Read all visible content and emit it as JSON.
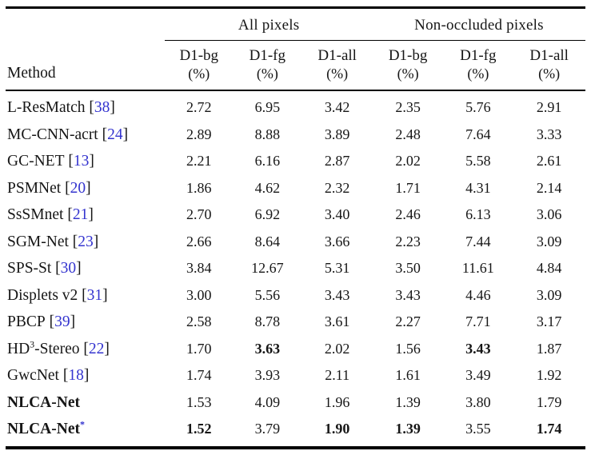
{
  "colors": {
    "text": "#161616",
    "citation_blue": "#3434cf",
    "rule": "#000000",
    "background": "#ffffff"
  },
  "table": {
    "method_header": "Method",
    "unit": "(%)",
    "groups": [
      {
        "label": "All pixels"
      },
      {
        "label": "Non-occluded pixels"
      }
    ],
    "columns": [
      "D1-bg",
      "D1-fg",
      "D1-all",
      "D1-bg",
      "D1-fg",
      "D1-all"
    ],
    "rows": [
      {
        "name": "L-ResMatch",
        "sup": "",
        "sup_blue": false,
        "name_rest": "",
        "cite": "38",
        "bold_method": false,
        "values": [
          "2.72",
          "6.95",
          "3.42",
          "2.35",
          "5.76",
          "2.91"
        ],
        "bold": [
          0,
          0,
          0,
          0,
          0,
          0
        ]
      },
      {
        "name": "MC-CNN-acrt",
        "sup": "",
        "sup_blue": false,
        "name_rest": "",
        "cite": "24",
        "bold_method": false,
        "values": [
          "2.89",
          "8.88",
          "3.89",
          "2.48",
          "7.64",
          "3.33"
        ],
        "bold": [
          0,
          0,
          0,
          0,
          0,
          0
        ]
      },
      {
        "name": "GC-NET",
        "sup": "",
        "sup_blue": false,
        "name_rest": "",
        "cite": "13",
        "bold_method": false,
        "values": [
          "2.21",
          "6.16",
          "2.87",
          "2.02",
          "5.58",
          "2.61"
        ],
        "bold": [
          0,
          0,
          0,
          0,
          0,
          0
        ]
      },
      {
        "name": "PSMNet",
        "sup": "",
        "sup_blue": false,
        "name_rest": "",
        "cite": "20",
        "bold_method": false,
        "values": [
          "1.86",
          "4.62",
          "2.32",
          "1.71",
          "4.31",
          "2.14"
        ],
        "bold": [
          0,
          0,
          0,
          0,
          0,
          0
        ]
      },
      {
        "name": "SsSMnet",
        "sup": "",
        "sup_blue": false,
        "name_rest": "",
        "cite": "21",
        "bold_method": false,
        "values": [
          "2.70",
          "6.92",
          "3.40",
          "2.46",
          "6.13",
          "3.06"
        ],
        "bold": [
          0,
          0,
          0,
          0,
          0,
          0
        ]
      },
      {
        "name": "SGM-Net",
        "sup": "",
        "sup_blue": false,
        "name_rest": "",
        "cite": "23",
        "bold_method": false,
        "values": [
          "2.66",
          "8.64",
          "3.66",
          "2.23",
          "7.44",
          "3.09"
        ],
        "bold": [
          0,
          0,
          0,
          0,
          0,
          0
        ]
      },
      {
        "name": "SPS-St",
        "sup": "",
        "sup_blue": false,
        "name_rest": "",
        "cite": "30",
        "bold_method": false,
        "values": [
          "3.84",
          "12.67",
          "5.31",
          "3.50",
          "11.61",
          "4.84"
        ],
        "bold": [
          0,
          0,
          0,
          0,
          0,
          0
        ]
      },
      {
        "name": "Displets v2",
        "sup": "",
        "sup_blue": false,
        "name_rest": "",
        "cite": "31",
        "bold_method": false,
        "values": [
          "3.00",
          "5.56",
          "3.43",
          "3.43",
          "4.46",
          "3.09"
        ],
        "bold": [
          0,
          0,
          0,
          0,
          0,
          0
        ]
      },
      {
        "name": "PBCP",
        "sup": "",
        "sup_blue": false,
        "name_rest": "",
        "cite": "39",
        "bold_method": false,
        "values": [
          "2.58",
          "8.78",
          "3.61",
          "2.27",
          "7.71",
          "3.17"
        ],
        "bold": [
          0,
          0,
          0,
          0,
          0,
          0
        ]
      },
      {
        "name": "HD",
        "sup": "3",
        "sup_blue": false,
        "name_rest": "-Stereo",
        "cite": "22",
        "bold_method": false,
        "values": [
          "1.70",
          "3.63",
          "2.02",
          "1.56",
          "3.43",
          "1.87"
        ],
        "bold": [
          0,
          1,
          0,
          0,
          1,
          0
        ]
      },
      {
        "name": "GwcNet",
        "sup": "",
        "sup_blue": false,
        "name_rest": "",
        "cite": "18",
        "bold_method": false,
        "values": [
          "1.74",
          "3.93",
          "2.11",
          "1.61",
          "3.49",
          "1.92"
        ],
        "bold": [
          0,
          0,
          0,
          0,
          0,
          0
        ]
      },
      {
        "name": "NLCA-Net",
        "sup": "",
        "sup_blue": false,
        "name_rest": "",
        "cite": "",
        "bold_method": true,
        "values": [
          "1.53",
          "4.09",
          "1.96",
          "1.39",
          "3.80",
          "1.79"
        ],
        "bold": [
          0,
          0,
          0,
          0,
          0,
          0
        ]
      },
      {
        "name": "NLCA-Net",
        "sup": "*",
        "sup_blue": true,
        "name_rest": "",
        "cite": "",
        "bold_method": true,
        "values": [
          "1.52",
          "3.79",
          "1.90",
          "1.39",
          "3.55",
          "1.74"
        ],
        "bold": [
          1,
          0,
          1,
          1,
          0,
          1
        ]
      }
    ]
  }
}
